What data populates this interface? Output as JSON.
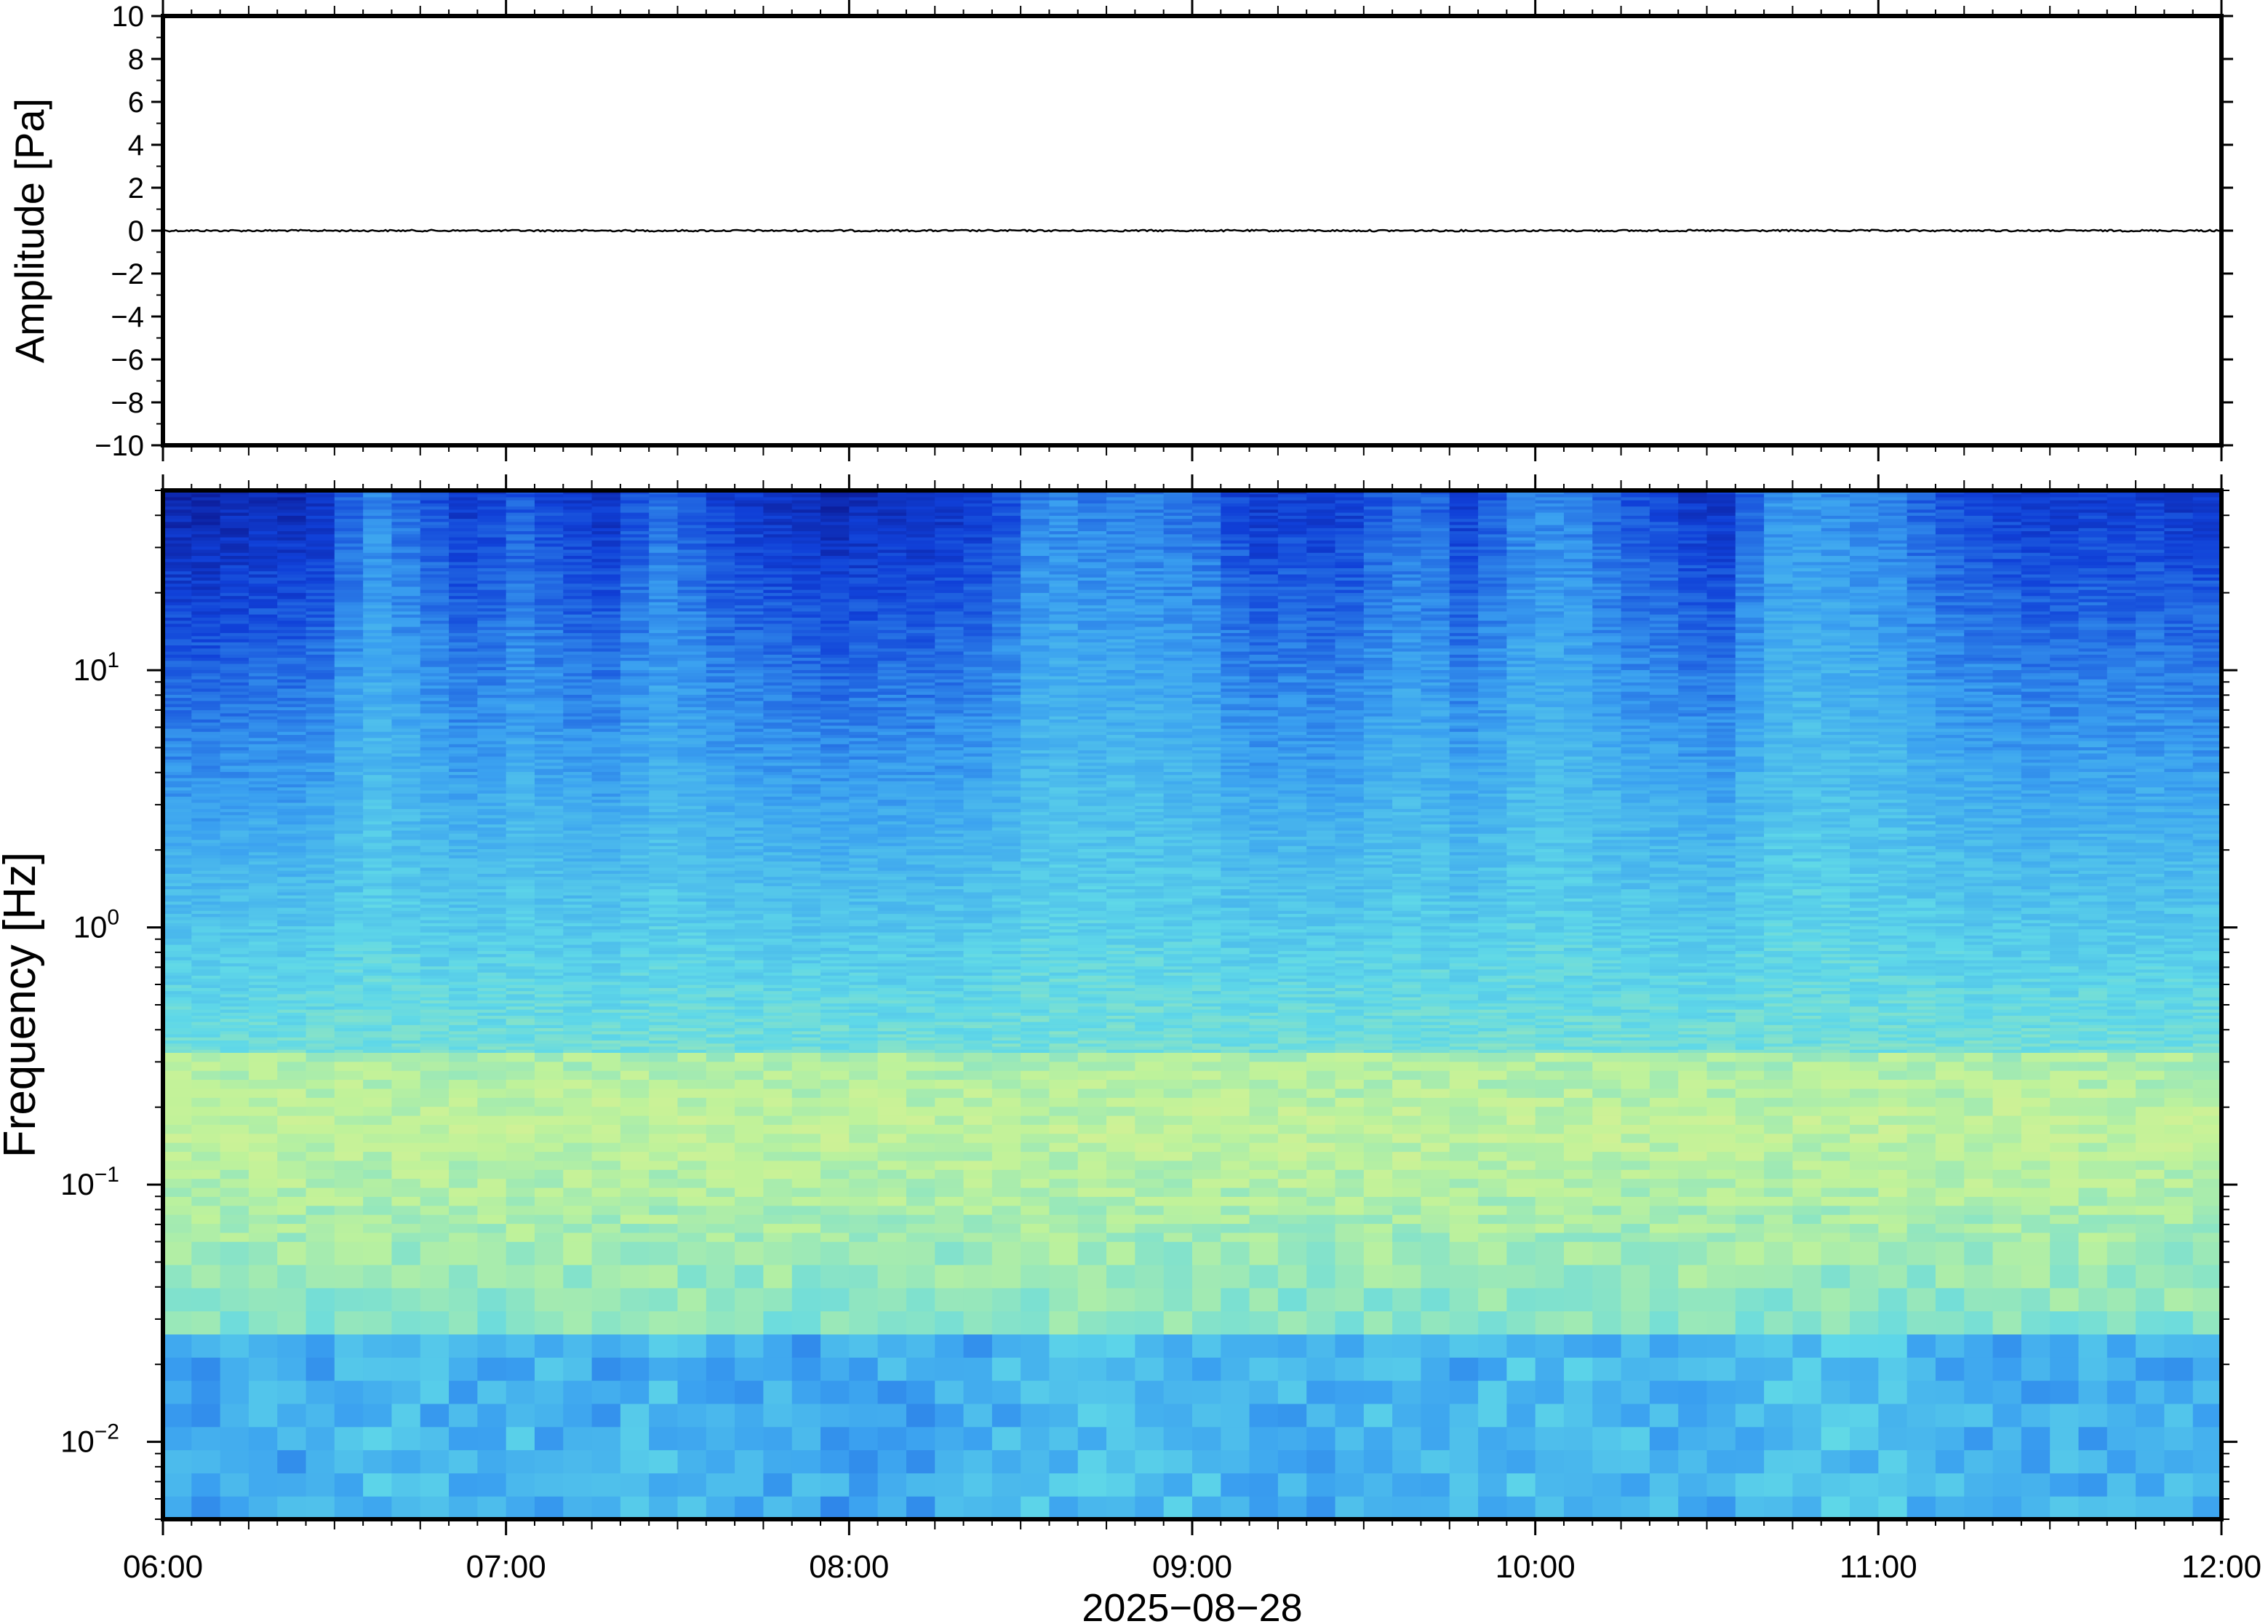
{
  "chart_data": [
    {
      "type": "line",
      "ylabel": "Amplitude [Pa]",
      "xlabel": "",
      "ylim": [
        -10,
        10
      ],
      "yticks": [
        10,
        8,
        6,
        4,
        2,
        0,
        -2,
        -4,
        -6,
        -8,
        -10
      ],
      "ytick_labels": [
        "10",
        "8",
        "6",
        "4",
        "2",
        "0",
        "−2",
        "−4",
        "−6",
        "−8",
        "−10"
      ],
      "x_range": [
        "06:00",
        "12:00"
      ],
      "series": [
        {
          "values": [
            0.0,
            0.0,
            0.0,
            0.0,
            0.0,
            0.0,
            0.0
          ]
        }
      ],
      "grid": false
    },
    {
      "type": "heatmap",
      "ylabel": "Frequency [Hz]",
      "xlabel": "2025−08−28",
      "yscale": "log",
      "ylim": [
        0.005,
        50
      ],
      "yticks": [
        10,
        1,
        0.1,
        0.01
      ],
      "ytick_labels": [
        {
          "base": "10",
          "exp": "1"
        },
        {
          "base": "10",
          "exp": "0"
        },
        {
          "base": "10",
          "exp": "−1"
        },
        {
          "base": "10",
          "exp": "−2"
        }
      ],
      "x": [
        "06:00",
        "07:00",
        "08:00",
        "09:00",
        "10:00",
        "11:00",
        "12:00"
      ],
      "colormap": [
        "#0a0a78",
        "#1040d8",
        "#3aa0f0",
        "#5fd8e8",
        "#bff29a",
        "#f0f08c"
      ],
      "grid": false
    }
  ]
}
